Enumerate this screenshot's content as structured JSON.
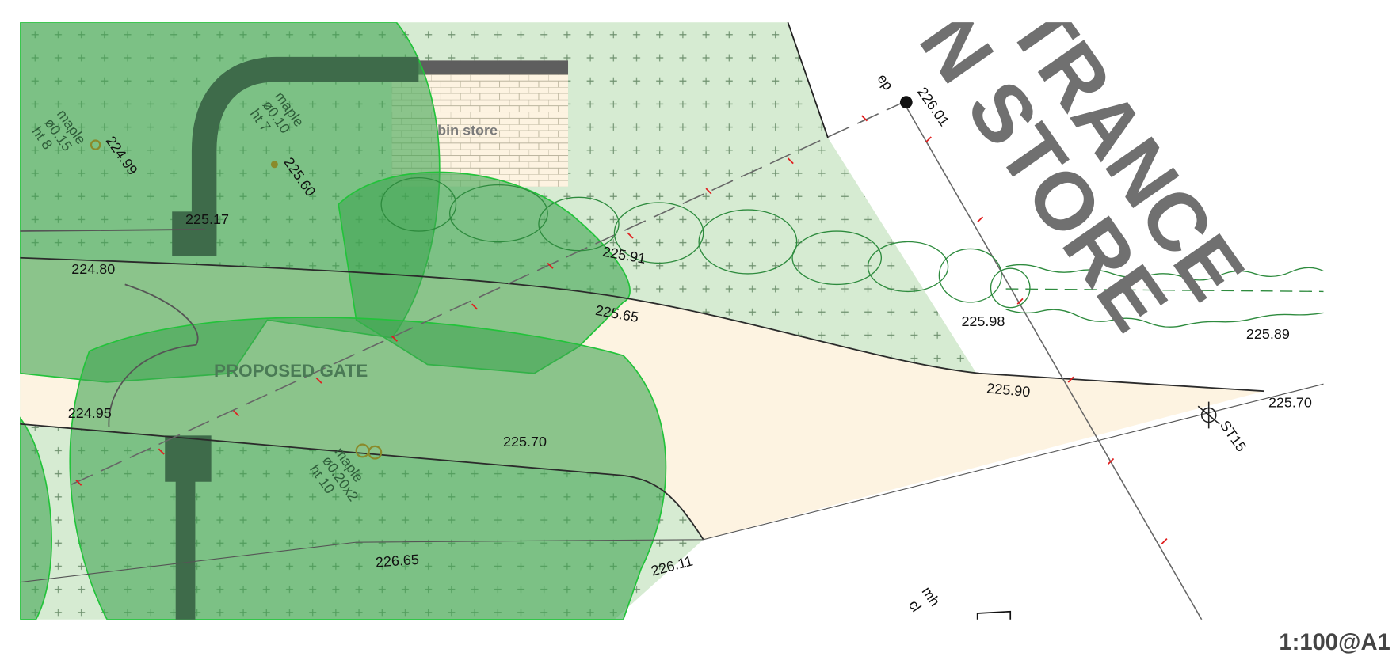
{
  "heading_fragments": [
    "TRANCE",
    "N STORE"
  ],
  "labels": {
    "ep": "ep",
    "bin_store": "bin store",
    "proposed_gate": "PROPOSED GATE",
    "station": "ST15",
    "mh": "mh",
    "cl": "cl",
    "scale": "1:100@A1"
  },
  "trees": [
    {
      "species": "maple",
      "diameter": "ø0.10",
      "height": "ht 7"
    },
    {
      "species": "maple",
      "diameter": "ø0.15",
      "height": "ht 8"
    },
    {
      "species": "maple",
      "diameter": "ø0.20x2",
      "height": "ht 10"
    }
  ],
  "levels": [
    "226.01",
    "225.60",
    "224.99",
    "225.17",
    "224.80",
    "225.91",
    "225.65",
    "224.95",
    "225.70",
    "226.65",
    "226.11",
    "225.98",
    "225.89",
    "225.90",
    "225.70"
  ]
}
